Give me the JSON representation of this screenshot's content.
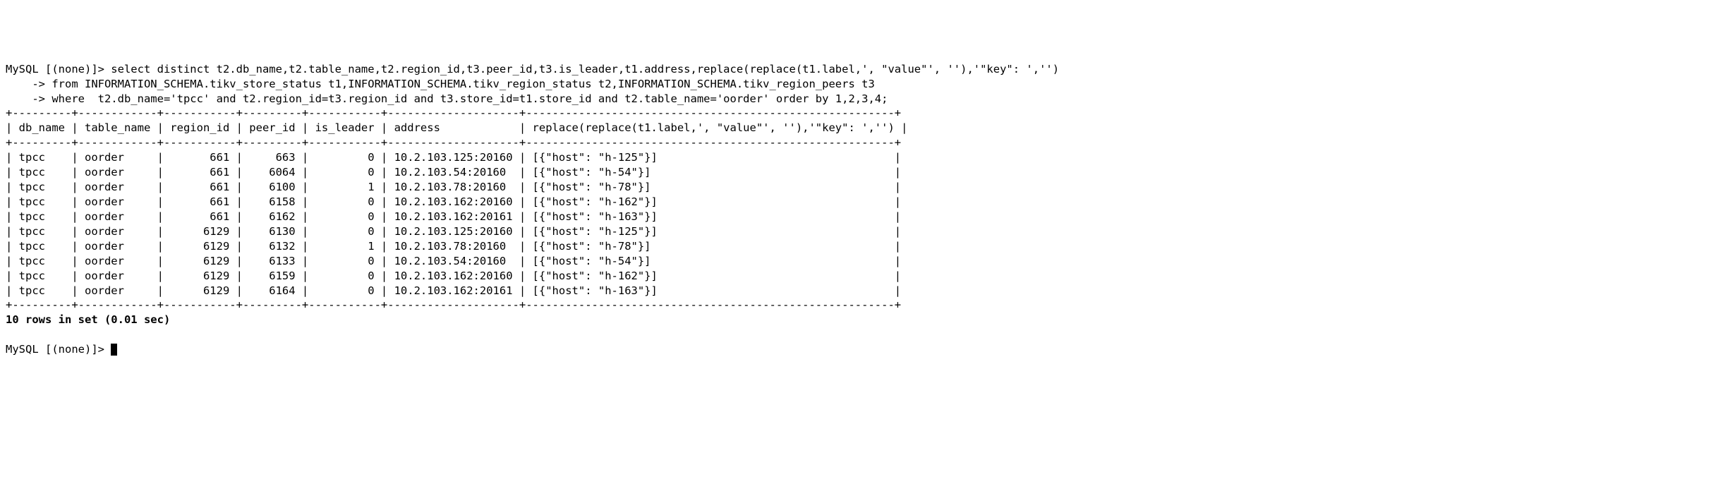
{
  "prompt_db": "(none)",
  "query": {
    "line1": "select distinct t2.db_name,t2.table_name,t2.region_id,t3.peer_id,t3.is_leader,t1.address,replace(replace(t1.label,', \"value\"', ''),'\"key\": ','')",
    "line2": "from INFORMATION_SCHEMA.tikv_store_status t1,INFORMATION_SCHEMA.tikv_region_status t2,INFORMATION_SCHEMA.tikv_region_peers t3",
    "line3": "where  t2.db_name='tpcc' and t2.region_id=t3.region_id and t3.store_id=t1.store_id and t2.table_name='oorder' order by 1,2,3,4;"
  },
  "columns": {
    "c0": {
      "name": "db_name",
      "width": 9,
      "align": "left"
    },
    "c1": {
      "name": "table_name",
      "width": 12,
      "align": "left"
    },
    "c2": {
      "name": "region_id",
      "width": 11,
      "align": "right"
    },
    "c3": {
      "name": "peer_id",
      "width": 9,
      "align": "right"
    },
    "c4": {
      "name": "is_leader",
      "width": 11,
      "align": "right"
    },
    "c5": {
      "name": "address",
      "width": 20,
      "align": "left"
    },
    "c6": {
      "name": "replace(replace(t1.label,', \"value\"', ''),'\"key\": ','')",
      "width": 56,
      "align": "left"
    }
  },
  "rows": [
    {
      "db_name": "tpcc",
      "table_name": "oorder",
      "region_id": 661,
      "peer_id": 663,
      "is_leader": 0,
      "address": "10.2.103.125:20160",
      "label": "[{\"host\": \"h-125\"}]"
    },
    {
      "db_name": "tpcc",
      "table_name": "oorder",
      "region_id": 661,
      "peer_id": 6064,
      "is_leader": 0,
      "address": "10.2.103.54:20160",
      "label": "[{\"host\": \"h-54\"}]"
    },
    {
      "db_name": "tpcc",
      "table_name": "oorder",
      "region_id": 661,
      "peer_id": 6100,
      "is_leader": 1,
      "address": "10.2.103.78:20160",
      "label": "[{\"host\": \"h-78\"}]"
    },
    {
      "db_name": "tpcc",
      "table_name": "oorder",
      "region_id": 661,
      "peer_id": 6158,
      "is_leader": 0,
      "address": "10.2.103.162:20160",
      "label": "[{\"host\": \"h-162\"}]"
    },
    {
      "db_name": "tpcc",
      "table_name": "oorder",
      "region_id": 661,
      "peer_id": 6162,
      "is_leader": 0,
      "address": "10.2.103.162:20161",
      "label": "[{\"host\": \"h-163\"}]"
    },
    {
      "db_name": "tpcc",
      "table_name": "oorder",
      "region_id": 6129,
      "peer_id": 6130,
      "is_leader": 0,
      "address": "10.2.103.125:20160",
      "label": "[{\"host\": \"h-125\"}]"
    },
    {
      "db_name": "tpcc",
      "table_name": "oorder",
      "region_id": 6129,
      "peer_id": 6132,
      "is_leader": 1,
      "address": "10.2.103.78:20160",
      "label": "[{\"host\": \"h-78\"}]"
    },
    {
      "db_name": "tpcc",
      "table_name": "oorder",
      "region_id": 6129,
      "peer_id": 6133,
      "is_leader": 0,
      "address": "10.2.103.54:20160",
      "label": "[{\"host\": \"h-54\"}]"
    },
    {
      "db_name": "tpcc",
      "table_name": "oorder",
      "region_id": 6129,
      "peer_id": 6159,
      "is_leader": 0,
      "address": "10.2.103.162:20160",
      "label": "[{\"host\": \"h-162\"}]"
    },
    {
      "db_name": "tpcc",
      "table_name": "oorder",
      "region_id": 6129,
      "peer_id": 6164,
      "is_leader": 0,
      "address": "10.2.103.162:20161",
      "label": "[{\"host\": \"h-163\"}]"
    }
  ],
  "summary": {
    "row_count": 10,
    "time_sec": "0.01"
  },
  "colors": {
    "bg": "#ffffff",
    "fg": "#000000",
    "cursor": "#000000"
  }
}
